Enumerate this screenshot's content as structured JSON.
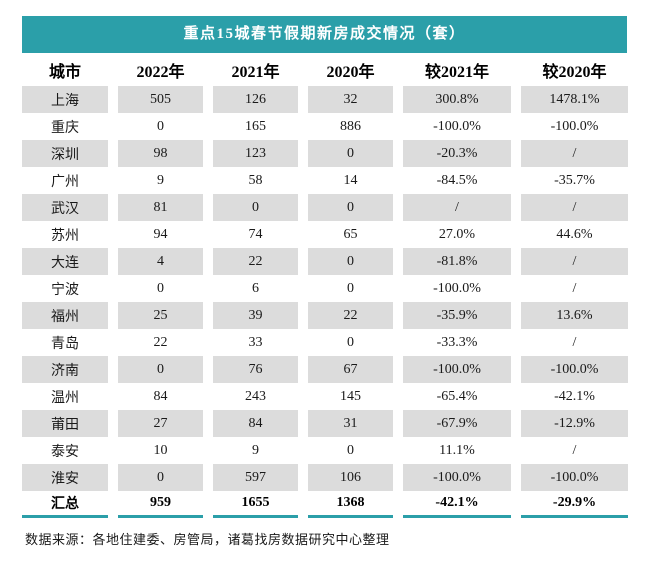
{
  "colors": {
    "accent": "#2B9FA9",
    "row_stripe": "#DCDCDC"
  },
  "chart_data": {
    "type": "table",
    "title": "重点15城春节假期新房成交情况（套）",
    "columns": [
      "城市",
      "2022年",
      "2021年",
      "2020年",
      "较2021年",
      "较2020年"
    ],
    "rows": [
      [
        "上海",
        "505",
        "126",
        "32",
        "300.8%",
        "1478.1%"
      ],
      [
        "重庆",
        "0",
        "165",
        "886",
        "-100.0%",
        "-100.0%"
      ],
      [
        "深圳",
        "98",
        "123",
        "0",
        "-20.3%",
        "/"
      ],
      [
        "广州",
        "9",
        "58",
        "14",
        "-84.5%",
        "-35.7%"
      ],
      [
        "武汉",
        "81",
        "0",
        "0",
        "/",
        "/"
      ],
      [
        "苏州",
        "94",
        "74",
        "65",
        "27.0%",
        "44.6%"
      ],
      [
        "大连",
        "4",
        "22",
        "0",
        "-81.8%",
        "/"
      ],
      [
        "宁波",
        "0",
        "6",
        "0",
        "-100.0%",
        "/"
      ],
      [
        "福州",
        "25",
        "39",
        "22",
        "-35.9%",
        "13.6%"
      ],
      [
        "青岛",
        "22",
        "33",
        "0",
        "-33.3%",
        "/"
      ],
      [
        "济南",
        "0",
        "76",
        "67",
        "-100.0%",
        "-100.0%"
      ],
      [
        "温州",
        "84",
        "243",
        "145",
        "-65.4%",
        "-42.1%"
      ],
      [
        "莆田",
        "27",
        "84",
        "31",
        "-67.9%",
        "-12.9%"
      ],
      [
        "泰安",
        "10",
        "9",
        "0",
        "11.1%",
        "/"
      ],
      [
        "淮安",
        "0",
        "597",
        "106",
        "-100.0%",
        "-100.0%"
      ]
    ],
    "total_row": [
      "汇总",
      "959",
      "1655",
      "1368",
      "-42.1%",
      "-29.9%"
    ],
    "source_note": "数据来源：各地住建委、房管局，诸葛找房数据研究中心整理",
    "layout": {
      "stripe_pattern": "odd-rows-gray",
      "grid": "white-column-gaps"
    }
  }
}
